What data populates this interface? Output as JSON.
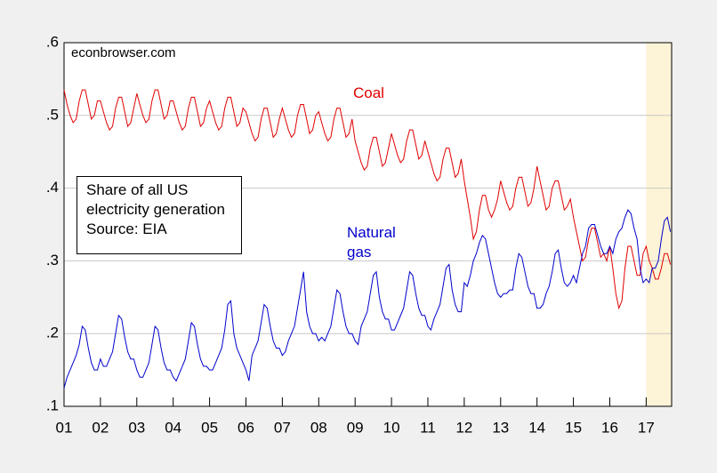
{
  "chart_data": {
    "type": "line",
    "annotations": {
      "source": "econbrowser.com",
      "note": [
        "Share of all US",
        "electricity generation",
        "Source: EIA"
      ]
    },
    "x": [
      2001.0,
      2001.083,
      2001.167,
      2001.25,
      2001.333,
      2001.417,
      2001.5,
      2001.583,
      2001.667,
      2001.75,
      2001.833,
      2001.917,
      2002.0,
      2002.083,
      2002.167,
      2002.25,
      2002.333,
      2002.417,
      2002.5,
      2002.583,
      2002.667,
      2002.75,
      2002.833,
      2002.917,
      2003.0,
      2003.083,
      2003.167,
      2003.25,
      2003.333,
      2003.417,
      2003.5,
      2003.583,
      2003.667,
      2003.75,
      2003.833,
      2003.917,
      2004.0,
      2004.083,
      2004.167,
      2004.25,
      2004.333,
      2004.417,
      2004.5,
      2004.583,
      2004.667,
      2004.75,
      2004.833,
      2004.917,
      2005.0,
      2005.083,
      2005.167,
      2005.25,
      2005.333,
      2005.417,
      2005.5,
      2005.583,
      2005.667,
      2005.75,
      2005.833,
      2005.917,
      2006.0,
      2006.083,
      2006.167,
      2006.25,
      2006.333,
      2006.417,
      2006.5,
      2006.583,
      2006.667,
      2006.75,
      2006.833,
      2006.917,
      2007.0,
      2007.083,
      2007.167,
      2007.25,
      2007.333,
      2007.417,
      2007.5,
      2007.583,
      2007.667,
      2007.75,
      2007.833,
      2007.917,
      2008.0,
      2008.083,
      2008.167,
      2008.25,
      2008.333,
      2008.417,
      2008.5,
      2008.583,
      2008.667,
      2008.75,
      2008.833,
      2008.917,
      2009.0,
      2009.083,
      2009.167,
      2009.25,
      2009.333,
      2009.417,
      2009.5,
      2009.583,
      2009.667,
      2009.75,
      2009.833,
      2009.917,
      2010.0,
      2010.083,
      2010.167,
      2010.25,
      2010.333,
      2010.417,
      2010.5,
      2010.583,
      2010.667,
      2010.75,
      2010.833,
      2010.917,
      2011.0,
      2011.083,
      2011.167,
      2011.25,
      2011.333,
      2011.417,
      2011.5,
      2011.583,
      2011.667,
      2011.75,
      2011.833,
      2011.917,
      2012.0,
      2012.083,
      2012.167,
      2012.25,
      2012.333,
      2012.417,
      2012.5,
      2012.583,
      2012.667,
      2012.75,
      2012.833,
      2012.917,
      2013.0,
      2013.083,
      2013.167,
      2013.25,
      2013.333,
      2013.417,
      2013.5,
      2013.583,
      2013.667,
      2013.75,
      2013.833,
      2013.917,
      2014.0,
      2014.083,
      2014.167,
      2014.25,
      2014.333,
      2014.417,
      2014.5,
      2014.583,
      2014.667,
      2014.75,
      2014.833,
      2014.917,
      2015.0,
      2015.083,
      2015.167,
      2015.25,
      2015.333,
      2015.417,
      2015.5,
      2015.583,
      2015.667,
      2015.75,
      2015.833,
      2015.917,
      2016.0,
      2016.083,
      2016.167,
      2016.25,
      2016.333,
      2016.417,
      2016.5,
      2016.583,
      2016.667,
      2016.75,
      2016.833,
      2016.917,
      2017.0,
      2017.083,
      2017.167,
      2017.25,
      2017.333,
      2017.417,
      2017.5,
      2017.583,
      2017.667
    ],
    "series": [
      {
        "name": "Coal",
        "color": "#e00000",
        "values": [
          0.535,
          0.515,
          0.5,
          0.49,
          0.495,
          0.52,
          0.535,
          0.535,
          0.515,
          0.495,
          0.5,
          0.52,
          0.52,
          0.505,
          0.49,
          0.48,
          0.485,
          0.51,
          0.525,
          0.525,
          0.505,
          0.485,
          0.49,
          0.51,
          0.53,
          0.515,
          0.5,
          0.49,
          0.495,
          0.52,
          0.535,
          0.535,
          0.515,
          0.495,
          0.5,
          0.52,
          0.52,
          0.505,
          0.49,
          0.48,
          0.485,
          0.51,
          0.525,
          0.525,
          0.505,
          0.485,
          0.49,
          0.51,
          0.52,
          0.505,
          0.49,
          0.48,
          0.485,
          0.51,
          0.525,
          0.525,
          0.505,
          0.485,
          0.49,
          0.51,
          0.505,
          0.49,
          0.475,
          0.465,
          0.47,
          0.495,
          0.51,
          0.51,
          0.49,
          0.47,
          0.475,
          0.495,
          0.51,
          0.495,
          0.48,
          0.47,
          0.475,
          0.5,
          0.515,
          0.515,
          0.495,
          0.475,
          0.48,
          0.5,
          0.505,
          0.49,
          0.475,
          0.465,
          0.47,
          0.495,
          0.51,
          0.51,
          0.49,
          0.47,
          0.475,
          0.495,
          0.465,
          0.45,
          0.435,
          0.425,
          0.43,
          0.455,
          0.47,
          0.47,
          0.45,
          0.43,
          0.435,
          0.455,
          0.475,
          0.46,
          0.445,
          0.435,
          0.44,
          0.465,
          0.48,
          0.48,
          0.46,
          0.44,
          0.445,
          0.465,
          0.45,
          0.435,
          0.42,
          0.41,
          0.415,
          0.44,
          0.455,
          0.455,
          0.435,
          0.415,
          0.42,
          0.44,
          0.41,
          0.385,
          0.36,
          0.33,
          0.34,
          0.37,
          0.39,
          0.39,
          0.37,
          0.36,
          0.37,
          0.385,
          0.41,
          0.395,
          0.38,
          0.37,
          0.375,
          0.4,
          0.415,
          0.415,
          0.395,
          0.375,
          0.38,
          0.4,
          0.43,
          0.41,
          0.39,
          0.37,
          0.375,
          0.4,
          0.41,
          0.41,
          0.39,
          0.37,
          0.375,
          0.385,
          0.36,
          0.34,
          0.32,
          0.3,
          0.305,
          0.33,
          0.345,
          0.345,
          0.325,
          0.305,
          0.31,
          0.3,
          0.32,
          0.29,
          0.255,
          0.235,
          0.245,
          0.29,
          0.32,
          0.32,
          0.3,
          0.28,
          0.28,
          0.31,
          0.32,
          0.3,
          0.29,
          0.275,
          0.275,
          0.29,
          0.31,
          0.31,
          0.295
        ]
      },
      {
        "name": "Natural gas",
        "color": "#0000cc",
        "values": [
          0.125,
          0.14,
          0.15,
          0.16,
          0.17,
          0.185,
          0.21,
          0.205,
          0.18,
          0.16,
          0.15,
          0.15,
          0.165,
          0.155,
          0.155,
          0.165,
          0.175,
          0.2,
          0.225,
          0.22,
          0.195,
          0.175,
          0.165,
          0.165,
          0.15,
          0.14,
          0.14,
          0.15,
          0.16,
          0.185,
          0.21,
          0.205,
          0.18,
          0.16,
          0.15,
          0.15,
          0.14,
          0.135,
          0.145,
          0.155,
          0.165,
          0.19,
          0.215,
          0.21,
          0.185,
          0.165,
          0.155,
          0.155,
          0.15,
          0.15,
          0.16,
          0.17,
          0.18,
          0.205,
          0.24,
          0.245,
          0.2,
          0.18,
          0.17,
          0.16,
          0.15,
          0.135,
          0.17,
          0.18,
          0.19,
          0.215,
          0.24,
          0.235,
          0.21,
          0.19,
          0.18,
          0.18,
          0.17,
          0.175,
          0.19,
          0.2,
          0.21,
          0.235,
          0.26,
          0.285,
          0.23,
          0.21,
          0.2,
          0.2,
          0.19,
          0.195,
          0.19,
          0.2,
          0.21,
          0.235,
          0.26,
          0.255,
          0.23,
          0.21,
          0.2,
          0.2,
          0.19,
          0.185,
          0.21,
          0.22,
          0.23,
          0.255,
          0.28,
          0.285,
          0.25,
          0.23,
          0.22,
          0.22,
          0.205,
          0.205,
          0.215,
          0.225,
          0.235,
          0.26,
          0.285,
          0.28,
          0.255,
          0.235,
          0.225,
          0.225,
          0.21,
          0.205,
          0.22,
          0.23,
          0.24,
          0.265,
          0.29,
          0.295,
          0.26,
          0.24,
          0.23,
          0.23,
          0.27,
          0.265,
          0.28,
          0.3,
          0.31,
          0.325,
          0.335,
          0.33,
          0.31,
          0.29,
          0.27,
          0.255,
          0.25,
          0.255,
          0.255,
          0.26,
          0.26,
          0.29,
          0.31,
          0.305,
          0.285,
          0.265,
          0.255,
          0.255,
          0.235,
          0.235,
          0.24,
          0.255,
          0.265,
          0.285,
          0.31,
          0.315,
          0.29,
          0.27,
          0.265,
          0.27,
          0.28,
          0.27,
          0.29,
          0.31,
          0.32,
          0.345,
          0.35,
          0.35,
          0.335,
          0.32,
          0.31,
          0.31,
          0.32,
          0.31,
          0.33,
          0.34,
          0.345,
          0.36,
          0.37,
          0.365,
          0.345,
          0.33,
          0.29,
          0.27,
          0.275,
          0.27,
          0.29,
          0.29,
          0.3,
          0.33,
          0.355,
          0.36,
          0.34
        ]
      }
    ],
    "xlim": [
      2001,
      2017.7
    ],
    "xticks": [
      {
        "value": 2001,
        "label": "01"
      },
      {
        "value": 2002,
        "label": "02"
      },
      {
        "value": 2003,
        "label": "03"
      },
      {
        "value": 2004,
        "label": "04"
      },
      {
        "value": 2005,
        "label": "05"
      },
      {
        "value": 2006,
        "label": "06"
      },
      {
        "value": 2007,
        "label": "07"
      },
      {
        "value": 2008,
        "label": "08"
      },
      {
        "value": 2009,
        "label": "09"
      },
      {
        "value": 2010,
        "label": "10"
      },
      {
        "value": 2011,
        "label": "11"
      },
      {
        "value": 2012,
        "label": "12"
      },
      {
        "value": 2013,
        "label": "13"
      },
      {
        "value": 2014,
        "label": "14"
      },
      {
        "value": 2015,
        "label": "15"
      },
      {
        "value": 2016,
        "label": "16"
      },
      {
        "value": 2017,
        "label": "17"
      }
    ],
    "ylim": [
      0.1,
      0.6
    ],
    "yticks": [
      {
        "value": 0.1,
        "label": ".1"
      },
      {
        "value": 0.2,
        "label": ".2"
      },
      {
        "value": 0.3,
        "label": ".3"
      },
      {
        "value": 0.4,
        "label": ".4"
      },
      {
        "value": 0.5,
        "label": ".5"
      },
      {
        "value": 0.6,
        "label": ".6"
      }
    ],
    "grid": true,
    "shaded_region": [
      2017,
      2017.7
    ],
    "shade_color": "#fdf3d6"
  }
}
